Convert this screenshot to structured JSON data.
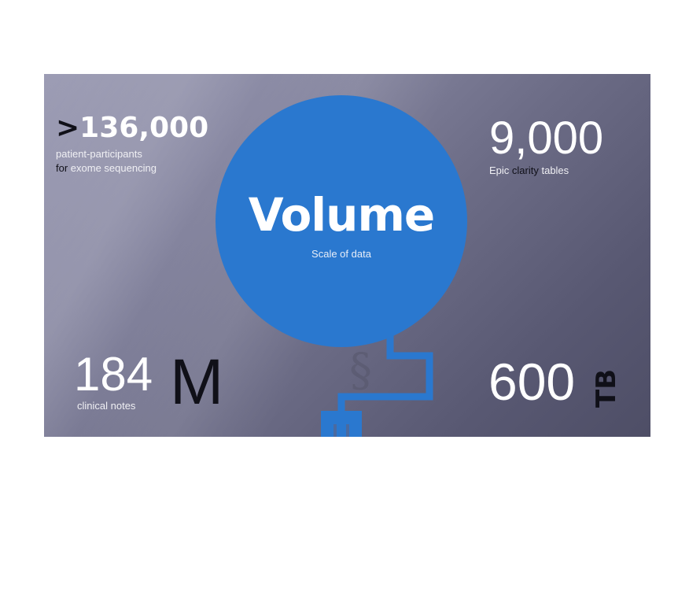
{
  "stats": {
    "top_left": {
      "prefix": ">",
      "value": "136,000",
      "line1": "patient-participants",
      "line2_a": "for ",
      "line2_b": "exome sequencing"
    },
    "top_right": {
      "value": "9,000",
      "caption_a": "Epic ",
      "caption_b": "clarity",
      "caption_c": " tables"
    },
    "bottom_left": {
      "value": "184",
      "unit": "M",
      "caption": "clinical notes"
    },
    "bottom_right": {
      "value": "600",
      "unit": "TB"
    }
  },
  "center": {
    "title": "Volume",
    "subtitle": "Scale of data",
    "symbol": "§"
  },
  "colors": {
    "accent": "#2a78cf",
    "background": "#6c6c86",
    "dark_text": "#101018"
  }
}
